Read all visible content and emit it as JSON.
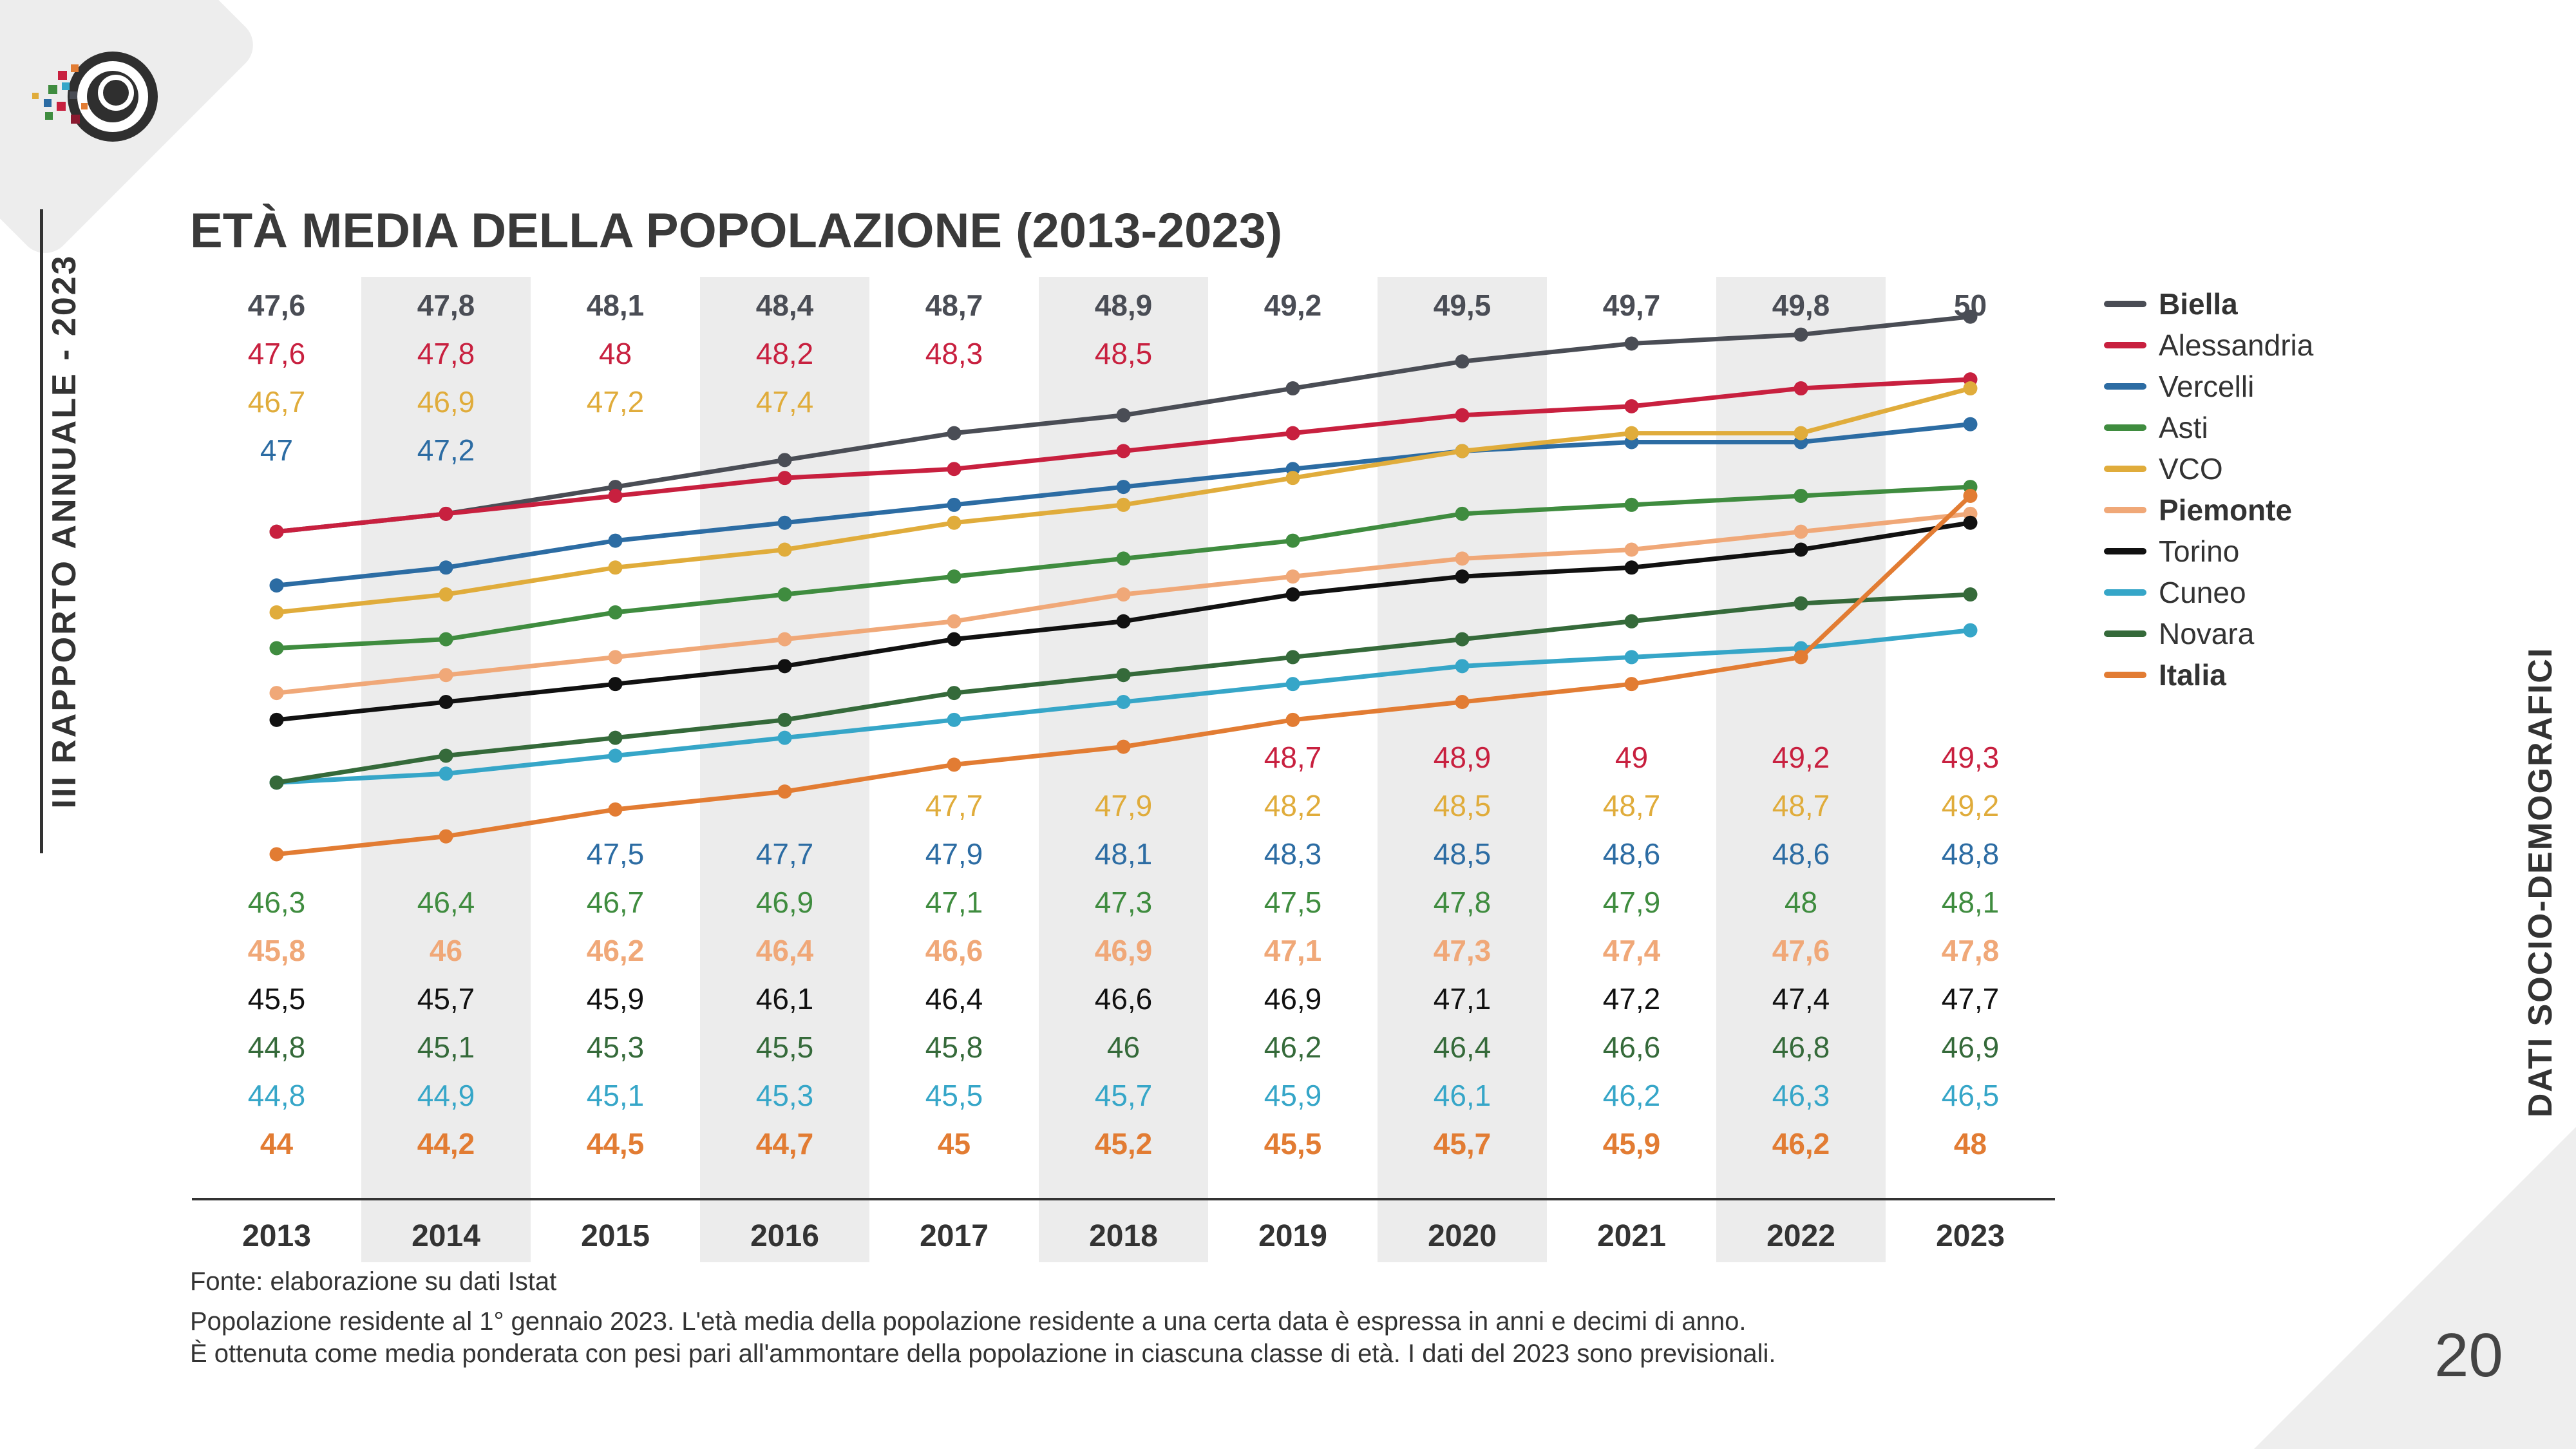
{
  "report": {
    "side_title": "III RAPPORTO ANNUALE - 2023",
    "section": "DATI SOCIO-DEMOGRAFICI",
    "page_number": "20"
  },
  "chart_data": {
    "type": "line",
    "title": "ETÀ MEDIA DELLA POPOLAZIONE (2013-2023)",
    "xlabel": "",
    "ylabel": "",
    "x": [
      "2013",
      "2014",
      "2015",
      "2016",
      "2017",
      "2018",
      "2019",
      "2020",
      "2021",
      "2022",
      "2023"
    ],
    "decimal_separator": ",",
    "series": [
      {
        "name": "Biella",
        "color": "#4a4d55",
        "bold": true,
        "values": [
          47.6,
          47.8,
          48.1,
          48.4,
          48.7,
          48.9,
          49.2,
          49.5,
          49.7,
          49.8,
          50
        ]
      },
      {
        "name": "Alessandria",
        "color": "#c8203f",
        "bold": false,
        "values": [
          47.6,
          47.8,
          48,
          48.2,
          48.3,
          48.5,
          48.7,
          48.9,
          49,
          49.2,
          49.3
        ]
      },
      {
        "name": "Vercelli",
        "color": "#2c6ca3",
        "bold": false,
        "values": [
          47,
          47.2,
          47.5,
          47.7,
          47.9,
          48.1,
          48.3,
          48.5,
          48.6,
          48.6,
          48.8
        ]
      },
      {
        "name": "Asti",
        "color": "#3f8c3f",
        "bold": false,
        "values": [
          46.3,
          46.4,
          46.7,
          46.9,
          47.1,
          47.3,
          47.5,
          47.8,
          47.9,
          48,
          48.1
        ]
      },
      {
        "name": "VCO",
        "color": "#e0ac3b",
        "bold": false,
        "values": [
          46.7,
          46.9,
          47.2,
          47.4,
          47.7,
          47.9,
          48.2,
          48.5,
          48.7,
          48.7,
          49.2
        ]
      },
      {
        "name": "Piemonte",
        "color": "#f0a878",
        "bold": true,
        "values": [
          45.8,
          46,
          46.2,
          46.4,
          46.6,
          46.9,
          47.1,
          47.3,
          47.4,
          47.6,
          47.8
        ]
      },
      {
        "name": "Torino",
        "color": "#111111",
        "bold": false,
        "values": [
          45.5,
          45.7,
          45.9,
          46.1,
          46.4,
          46.6,
          46.9,
          47.1,
          47.2,
          47.4,
          47.7
        ]
      },
      {
        "name": "Cuneo",
        "color": "#36a6c8",
        "bold": false,
        "values": [
          44.8,
          44.9,
          45.1,
          45.3,
          45.5,
          45.7,
          45.9,
          46.1,
          46.2,
          46.3,
          46.5
        ]
      },
      {
        "name": "Novara",
        "color": "#356a3a",
        "bold": false,
        "values": [
          44.8,
          45.1,
          45.3,
          45.5,
          45.8,
          46,
          46.2,
          46.4,
          46.6,
          46.8,
          46.9
        ]
      },
      {
        "name": "Italia",
        "color": "#e27c33",
        "bold": true,
        "values": [
          44,
          44.2,
          44.5,
          44.7,
          45,
          45.2,
          45.5,
          45.7,
          45.9,
          46.2,
          48
        ]
      }
    ],
    "labels_top": [
      {
        "series": "Biella",
        "values": [
          47.6,
          47.8,
          48.1,
          48.4,
          48.7,
          48.9,
          49.2,
          49.5,
          49.7,
          49.8,
          50
        ]
      },
      {
        "series": "Alessandria",
        "values": [
          47.6,
          47.8,
          48,
          48.2,
          48.3,
          48.5,
          null,
          null,
          null,
          null,
          null
        ]
      },
      {
        "series": "VCO",
        "values": [
          46.7,
          46.9,
          47.2,
          47.4,
          null,
          null,
          null,
          null,
          null,
          null,
          null
        ]
      },
      {
        "series": "Vercelli",
        "values": [
          47,
          47.2,
          null,
          null,
          null,
          null,
          null,
          null,
          null,
          null,
          null
        ]
      }
    ],
    "labels_bottom": [
      {
        "series": "Alessandria",
        "values": [
          null,
          null,
          null,
          null,
          null,
          null,
          48.7,
          48.9,
          49,
          49.2,
          49.3
        ]
      },
      {
        "series": "VCO",
        "values": [
          null,
          null,
          null,
          null,
          47.7,
          47.9,
          48.2,
          48.5,
          48.7,
          48.7,
          49.2
        ]
      },
      {
        "series": "Vercelli",
        "values": [
          null,
          null,
          47.5,
          47.7,
          47.9,
          48.1,
          48.3,
          48.5,
          48.6,
          48.6,
          48.8
        ]
      },
      {
        "series": "Asti",
        "values": [
          46.3,
          46.4,
          46.7,
          46.9,
          47.1,
          47.3,
          47.5,
          47.8,
          47.9,
          48,
          48.1
        ]
      },
      {
        "series": "Piemonte",
        "values": [
          45.8,
          46,
          46.2,
          46.4,
          46.6,
          46.9,
          47.1,
          47.3,
          47.4,
          47.6,
          47.8
        ]
      },
      {
        "series": "Torino",
        "values": [
          45.5,
          45.7,
          45.9,
          46.1,
          46.4,
          46.6,
          46.9,
          47.1,
          47.2,
          47.4,
          47.7
        ]
      },
      {
        "series": "Novara",
        "values": [
          44.8,
          45.1,
          45.3,
          45.5,
          45.8,
          46,
          46.2,
          46.4,
          46.6,
          46.8,
          46.9
        ]
      },
      {
        "series": "Cuneo",
        "values": [
          44.8,
          44.9,
          45.1,
          45.3,
          45.5,
          45.7,
          45.9,
          46.1,
          46.2,
          46.3,
          46.5
        ]
      },
      {
        "series": "Italia",
        "values": [
          44,
          44.2,
          44.5,
          44.7,
          45,
          45.2,
          45.5,
          45.7,
          45.9,
          46.2,
          48
        ]
      }
    ],
    "ylim": [
      43.4,
      50.3
    ],
    "grid": false,
    "alternating_column_shading": true,
    "legend_position": "right"
  },
  "notes": {
    "source": "Fonte: elaborazione su dati Istat",
    "line1": "Popolazione residente al 1° gennaio 2023. L'età media della popolazione residente a una certa data è espressa in anni e decimi di anno.",
    "line2": "È ottenuta come media ponderata con pesi pari all'ammontare della popolazione in ciascuna classe di età. I dati del 2023 sono previsionali."
  }
}
